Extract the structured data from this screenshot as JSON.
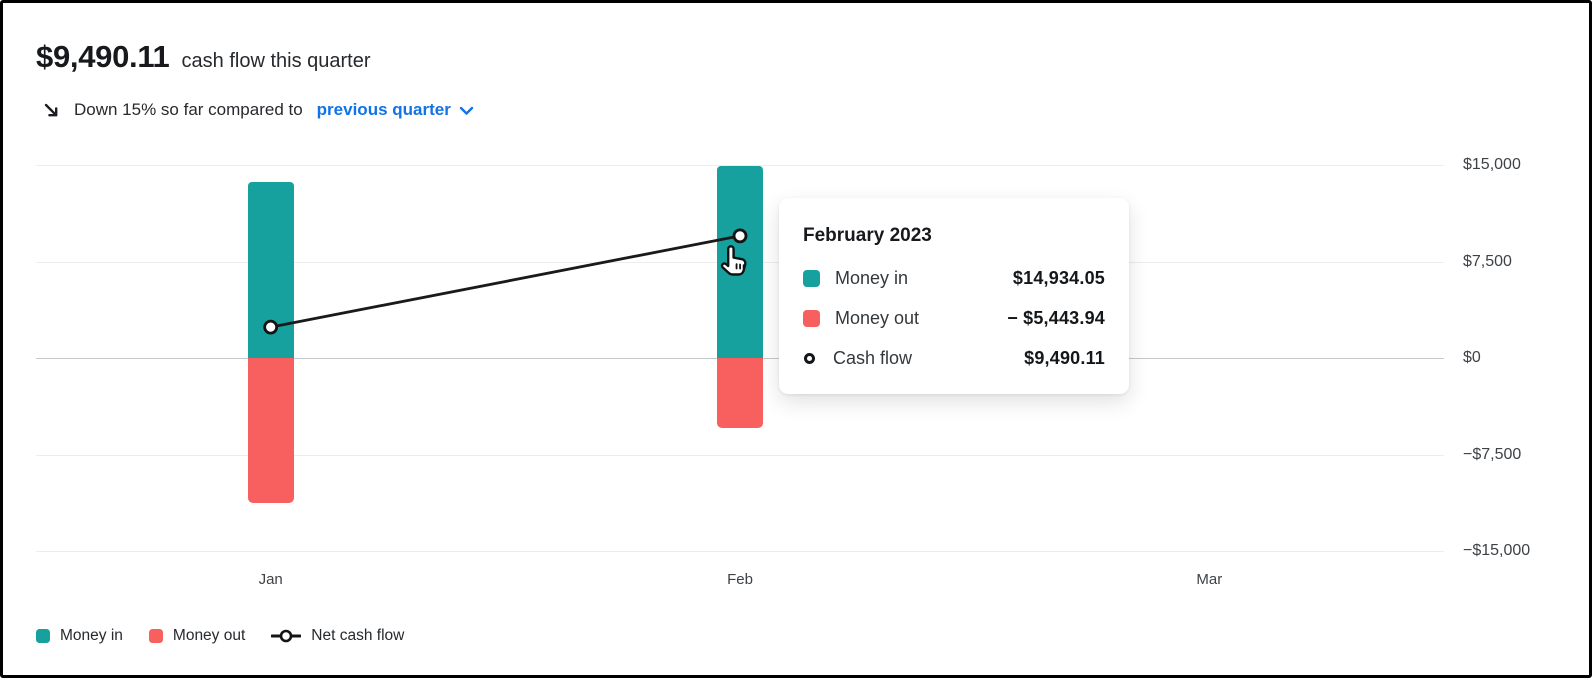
{
  "header": {
    "amount": "$9,490.11",
    "amount_caption": "cash flow this quarter",
    "trend_icon": "arrow-down-right-icon",
    "trend_text": "Down 15% so far compared to",
    "trend_link_label": "previous quarter",
    "trend_link_chevron": "chevron-down-icon"
  },
  "colors": {
    "money_in": "#16a09e",
    "money_out": "#f7605e",
    "net_line": "#1a1a1a",
    "link_blue": "#1273e6"
  },
  "chart_data": {
    "type": "bar",
    "subtype": "combo-bar-line",
    "categories": [
      "Jan",
      "Feb",
      "Mar"
    ],
    "series": [
      {
        "name": "Money in",
        "type": "bar",
        "color": "#16a09e",
        "values": [
          13700,
          14934.05,
          null
        ]
      },
      {
        "name": "Money out",
        "type": "bar",
        "color": "#f7605e",
        "values": [
          -11300,
          -5443.94,
          null
        ]
      },
      {
        "name": "Net cash flow",
        "type": "line",
        "color": "#1a1a1a",
        "values": [
          2400,
          9490.11,
          null
        ]
      }
    ],
    "ylim": [
      -15000,
      15000
    ],
    "y_ticks": [
      {
        "value": 15000,
        "label": "$15,000"
      },
      {
        "value": 7500,
        "label": "$7,500"
      },
      {
        "value": 0,
        "label": "$0"
      },
      {
        "value": -7500,
        "label": "−$7,500"
      },
      {
        "value": -15000,
        "label": "−$15,000"
      }
    ],
    "grid": true,
    "legend_position": "bottom-left",
    "y_axis_side": "right"
  },
  "tooltip": {
    "title": "February 2023",
    "rows": [
      {
        "icon": "money-in-swatch",
        "label": "Money in",
        "value": "$14,934.05"
      },
      {
        "icon": "money-out-swatch",
        "label": "Money out",
        "value": "− $5,443.94"
      },
      {
        "icon": "cash-flow-ring",
        "label": "Cash flow",
        "value": "$9,490.11"
      }
    ]
  },
  "legend": {
    "items": [
      {
        "icon": "money-in-swatch",
        "label": "Money in"
      },
      {
        "icon": "money-out-swatch",
        "label": "Money out"
      },
      {
        "icon": "net-cash-flow-line",
        "label": "Net cash flow"
      }
    ]
  }
}
